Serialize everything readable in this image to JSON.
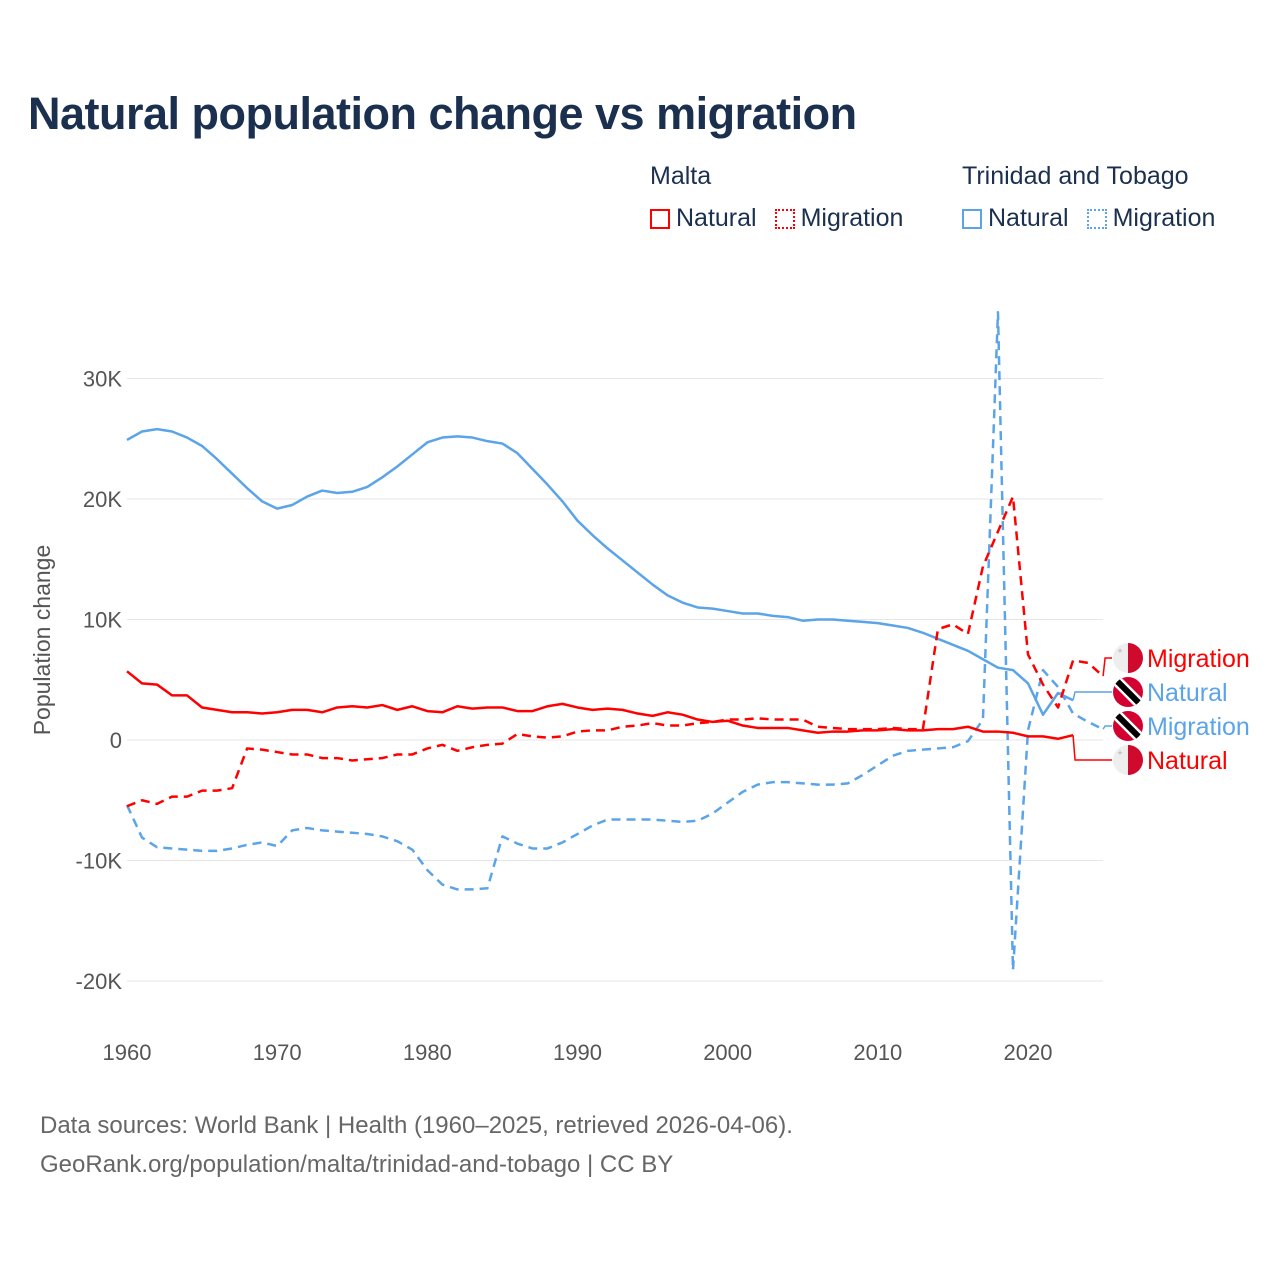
{
  "title": "Natural population change vs migration",
  "legend": {
    "groups": [
      {
        "name": "Malta",
        "color": "#ff0000",
        "items": [
          "Natural",
          "Migration"
        ]
      },
      {
        "name": "Trinidad and Tobago",
        "color": "#5ba4e8",
        "items": [
          "Natural",
          "Migration"
        ]
      }
    ]
  },
  "source": {
    "line1": "Data sources: World Bank | Health (1960–2025, retrieved 2026-04-06).",
    "line2": "GeoRank.org/population/malta/trinidad-and-tobago | CC BY"
  },
  "chart_data": {
    "type": "line",
    "title": "Natural population change vs migration",
    "xlabel": "",
    "ylabel": "Population change",
    "xlim": [
      1960,
      2025
    ],
    "ylim": [
      -22000,
      36000
    ],
    "x_ticks": [
      1960,
      1970,
      1980,
      1990,
      2000,
      2010,
      2020
    ],
    "y_ticks": [
      {
        "v": -20000,
        "label": "-20K"
      },
      {
        "v": -10000,
        "label": "-10K"
      },
      {
        "v": 0,
        "label": "0"
      },
      {
        "v": 10000,
        "label": "10K"
      },
      {
        "v": 20000,
        "label": "20K"
      },
      {
        "v": 30000,
        "label": "30K"
      }
    ],
    "grid": true,
    "legend_position": "top-right",
    "series": [
      {
        "name": "Trinidad and Tobago Natural",
        "label": "Natural",
        "country": "Trinidad and Tobago",
        "color": "#5ba4e8",
        "dash": false,
        "start": 1960,
        "values": [
          24.9,
          25.6,
          25.8,
          25.6,
          25.1,
          24.4,
          23.3,
          22.1,
          20.9,
          19.8,
          19.2,
          19.5,
          20.2,
          20.7,
          20.5,
          20.6,
          21.0,
          21.8,
          22.7,
          23.7,
          24.7,
          25.1,
          25.2,
          25.1,
          24.8,
          24.6,
          23.8,
          22.5,
          21.2,
          19.8,
          18.2,
          17.0,
          15.9,
          14.9,
          13.9,
          12.9,
          12.0,
          11.4,
          11.0,
          10.9,
          10.7,
          10.5,
          10.5,
          10.3,
          10.2,
          9.9,
          10.0,
          10.0,
          9.9,
          9.8,
          9.7,
          9.5,
          9.3,
          8.9,
          8.4,
          7.9,
          7.4,
          6.7,
          6.0,
          5.8,
          4.7,
          2.1,
          3.9,
          3.3
        ]
      },
      {
        "name": "Trinidad and Tobago Migration",
        "label": "Migration",
        "country": "Trinidad and Tobago",
        "color": "#5ba4e8",
        "dash": true,
        "start": 1960,
        "values": [
          -5.4,
          -8.1,
          -8.9,
          -9.0,
          -9.1,
          -9.2,
          -9.2,
          -9.0,
          -8.7,
          -8.5,
          -8.8,
          -7.5,
          -7.3,
          -7.5,
          -7.6,
          -7.7,
          -7.8,
          -8.0,
          -8.4,
          -9.1,
          -10.8,
          -12.0,
          -12.4,
          -12.4,
          -12.3,
          -8.0,
          -8.6,
          -9.0,
          -9.0,
          -8.5,
          -7.8,
          -7.1,
          -6.6,
          -6.6,
          -6.6,
          -6.6,
          -6.7,
          -6.8,
          -6.7,
          -6.1,
          -5.2,
          -4.3,
          -3.7,
          -3.5,
          -3.5,
          -3.6,
          -3.7,
          -3.7,
          -3.6,
          -2.9,
          -2.1,
          -1.3,
          -0.9,
          -0.8,
          -0.7,
          -0.6,
          -0.1,
          1.7,
          35.5,
          -19.1,
          0.8,
          5.8,
          4.4,
          2.2,
          1.5,
          0.9
        ]
      },
      {
        "name": "Malta Natural",
        "label": "Natural",
        "country": "Malta",
        "color": "#ff0000",
        "dash": false,
        "start": 1960,
        "values": [
          5.7,
          4.7,
          4.6,
          3.7,
          3.7,
          2.7,
          2.5,
          2.3,
          2.3,
          2.2,
          2.3,
          2.5,
          2.5,
          2.3,
          2.7,
          2.8,
          2.7,
          2.9,
          2.5,
          2.8,
          2.4,
          2.3,
          2.8,
          2.6,
          2.7,
          2.7,
          2.4,
          2.4,
          2.8,
          3.0,
          2.7,
          2.5,
          2.6,
          2.5,
          2.2,
          2.0,
          2.3,
          2.1,
          1.7,
          1.5,
          1.6,
          1.2,
          1.0,
          1.0,
          1.0,
          0.8,
          0.6,
          0.7,
          0.7,
          0.8,
          0.8,
          0.9,
          0.8,
          0.8,
          0.9,
          0.9,
          1.1,
          0.7,
          0.7,
          0.6,
          0.3,
          0.3,
          0.1,
          0.4
        ]
      },
      {
        "name": "Malta Migration",
        "label": "Migration",
        "country": "Malta",
        "color": "#ff0000",
        "dash": true,
        "start": 1960,
        "values": [
          -5.5,
          -5.0,
          -5.3,
          -4.7,
          -4.7,
          -4.2,
          -4.2,
          -4.0,
          -0.7,
          -0.8,
          -1.0,
          -1.2,
          -1.2,
          -1.5,
          -1.5,
          -1.7,
          -1.6,
          -1.5,
          -1.2,
          -1.2,
          -0.7,
          -0.4,
          -0.9,
          -0.6,
          -0.4,
          -0.3,
          0.5,
          0.3,
          0.2,
          0.3,
          0.7,
          0.8,
          0.8,
          1.1,
          1.2,
          1.4,
          1.2,
          1.2,
          1.4,
          1.5,
          1.7,
          1.7,
          1.8,
          1.7,
          1.7,
          1.7,
          1.1,
          1.0,
          0.9,
          0.9,
          0.9,
          1.0,
          0.9,
          0.9,
          9.2,
          9.6,
          8.8,
          14.4,
          17.3,
          20.2,
          7.1,
          4.6,
          2.7,
          6.6,
          6.4,
          5.3
        ]
      }
    ],
    "value_unit": "thousands",
    "end_labels_order": [
      "Malta Migration",
      "Trinidad and Tobago Natural",
      "Trinidad and Tobago Migration",
      "Malta Natural"
    ]
  }
}
